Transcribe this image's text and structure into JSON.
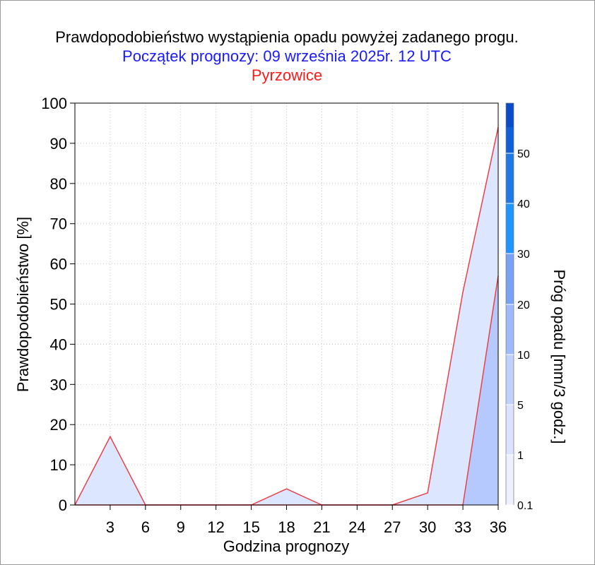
{
  "chart_data": {
    "type": "area",
    "title": "Prawdopodobieństwo wystąpienia opadu powyżej zadanego progu.",
    "subtitle": "Początek prognozy: 09 września 2025r. 12 UTC",
    "location": "Pyrzowice",
    "xlabel": "Godzina prognozy",
    "ylabel": "Prawdopodobieństwo [%]",
    "colorbar_label": "Próg opadu [mm/3 godz.]",
    "xlim": [
      0,
      36
    ],
    "ylim": [
      0,
      100
    ],
    "x_ticks": [
      3,
      6,
      9,
      12,
      15,
      18,
      21,
      24,
      27,
      30,
      33,
      36
    ],
    "y_ticks": [
      0,
      10,
      20,
      30,
      40,
      50,
      60,
      70,
      80,
      90,
      100
    ],
    "grid": true,
    "line_color": "#e8414a",
    "series": [
      {
        "name": "0.1",
        "color": "#dde6ff",
        "x": [
          0,
          3,
          6,
          9,
          12,
          15,
          18,
          21,
          24,
          27,
          30,
          33,
          36
        ],
        "values": [
          0,
          17,
          0,
          0,
          0,
          0,
          4,
          0,
          0,
          0,
          3,
          53,
          94
        ]
      },
      {
        "name": "1",
        "color": "#b5c9ff",
        "x": [
          0,
          3,
          6,
          9,
          12,
          15,
          18,
          21,
          24,
          27,
          30,
          33,
          36
        ],
        "values": [
          0,
          0,
          0,
          0,
          0,
          0,
          0,
          0,
          0,
          0,
          0,
          0,
          57
        ]
      }
    ],
    "colorbar": {
      "levels": [
        "0.1",
        "1",
        "5",
        "10",
        "20",
        "30",
        "40",
        "50"
      ],
      "colors": [
        "#edf1ff",
        "#d9e3ff",
        "#c1d1ff",
        "#9fbaff",
        "#7aa2f4",
        "#1f96ff",
        "#1e78e6",
        "#0f5fd6",
        "#0a4bc8",
        "#0538b4"
      ]
    }
  }
}
